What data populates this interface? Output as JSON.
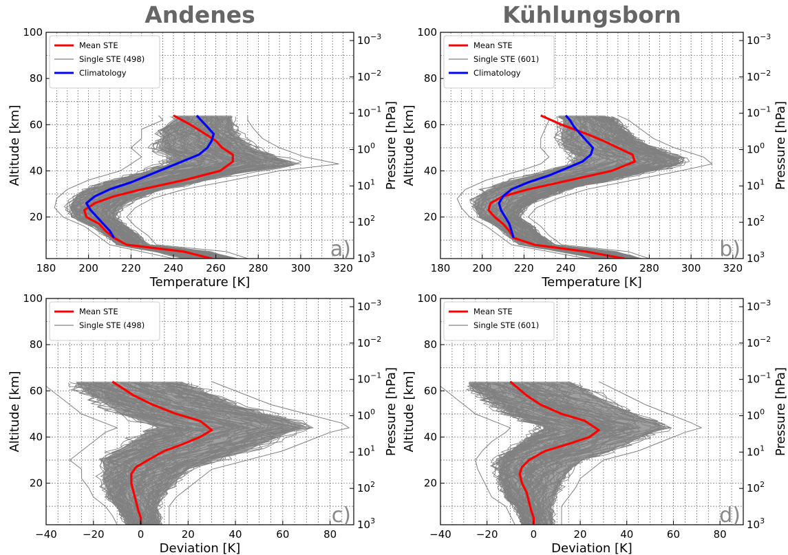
{
  "titles": {
    "left": "Andenes",
    "right": "Kühlungsborn"
  },
  "chart_data": [
    {
      "id": "a",
      "type": "line",
      "panel_label": "a)",
      "xlabel": "Temperature [K]",
      "ylabel": "Altitude [km]",
      "y2label": "Pressure [hPa]",
      "xlim": [
        180,
        325
      ],
      "ylim": [
        2,
        100
      ],
      "xticks": [
        "180",
        "200",
        "220",
        "240",
        "260",
        "280",
        "300",
        "320"
      ],
      "yticks": [
        "20",
        "40",
        "60",
        "80",
        "100"
      ],
      "y2ticks": [
        {
          "base": "10",
          "exp": "−3"
        },
        {
          "base": "10",
          "exp": "−2"
        },
        {
          "base": "10",
          "exp": "−1"
        },
        {
          "base": "10",
          "exp": "0"
        },
        {
          "base": "10",
          "exp": "1"
        },
        {
          "base": "10",
          "exp": "2"
        },
        {
          "base": "10",
          "exp": "3"
        }
      ],
      "grid": true,
      "legend_position": "top-left",
      "legend": [
        "Mean STE",
        "Single STE (498)",
        "Climatology"
      ],
      "series": [
        {
          "name": "Mean STE",
          "color": "#ff0000",
          "altitude": [
            2,
            5,
            8,
            11,
            14,
            17,
            20,
            23,
            26,
            29,
            32,
            36,
            40,
            44,
            47,
            50,
            53,
            56,
            60,
            64
          ],
          "values": [
            258,
            245,
            218,
            212,
            208,
            205,
            199,
            198,
            203,
            212,
            225,
            245,
            262,
            268,
            268,
            263,
            260,
            255,
            248,
            240
          ]
        },
        {
          "name": "Climatology",
          "color": "#0000ff",
          "altitude": [
            11,
            14,
            17,
            20,
            23,
            26,
            29,
            32,
            35,
            38,
            41,
            44,
            47,
            50,
            53,
            56,
            59,
            62,
            64
          ],
          "values": [
            212,
            210,
            207,
            204,
            201,
            199,
            203,
            210,
            220,
            228,
            236,
            244,
            252,
            256,
            258,
            259,
            256,
            253,
            251
          ]
        }
      ],
      "single_ste": {
        "name": "Single STE (498)",
        "color": "#808080",
        "count": 498,
        "envelope": {
          "altitude": [
            2,
            5,
            8,
            12,
            16,
            20,
            24,
            28,
            32,
            36,
            40,
            43,
            46,
            50,
            54,
            58,
            62,
            64
          ],
          "min": [
            240,
            225,
            210,
            204,
            198,
            188,
            184,
            185,
            190,
            200,
            215,
            220,
            225,
            220,
            225,
            225,
            235,
            233
          ],
          "max": [
            275,
            265,
            232,
            228,
            222,
            218,
            222,
            230,
            245,
            268,
            290,
            318,
            302,
            290,
            282,
            278,
            275,
            275
          ]
        }
      }
    },
    {
      "id": "b",
      "type": "line",
      "panel_label": "b)",
      "xlabel": "Temperature [K]",
      "ylabel": "Altitude [km]",
      "y2label": "Pressure [hPa]",
      "xlim": [
        180,
        325
      ],
      "ylim": [
        2,
        100
      ],
      "xticks": [
        "180",
        "200",
        "220",
        "240",
        "260",
        "280",
        "300",
        "320"
      ],
      "yticks": [
        "20",
        "40",
        "60",
        "80",
        "100"
      ],
      "y2ticks": [
        {
          "base": "10",
          "exp": "−3"
        },
        {
          "base": "10",
          "exp": "−2"
        },
        {
          "base": "10",
          "exp": "−1"
        },
        {
          "base": "10",
          "exp": "0"
        },
        {
          "base": "10",
          "exp": "1"
        },
        {
          "base": "10",
          "exp": "2"
        },
        {
          "base": "10",
          "exp": "3"
        }
      ],
      "grid": true,
      "legend_position": "top-left",
      "legend": [
        "Mean STE",
        "Single STE (601)",
        "Climatology"
      ],
      "series": [
        {
          "name": "Mean STE",
          "color": "#ff0000",
          "altitude": [
            2,
            5,
            8,
            11,
            14,
            17,
            20,
            23,
            26,
            29,
            32,
            36,
            40,
            44,
            47,
            50,
            53,
            56,
            60,
            64
          ],
          "values": [
            268,
            250,
            225,
            215,
            213,
            210,
            206,
            203,
            204,
            210,
            222,
            242,
            262,
            273,
            272,
            265,
            258,
            250,
            238,
            228
          ]
        },
        {
          "name": "Climatology",
          "color": "#0000ff",
          "altitude": [
            11,
            14,
            17,
            20,
            23,
            26,
            29,
            32,
            35,
            38,
            41,
            44,
            47,
            50,
            53,
            56,
            59,
            62,
            64
          ],
          "values": [
            215,
            214,
            213,
            211,
            209,
            208,
            210,
            214,
            222,
            232,
            240,
            248,
            252,
            253,
            250,
            247,
            244,
            242,
            240
          ]
        }
      ],
      "single_ste": {
        "name": "Single STE (601)",
        "color": "#808080",
        "count": 601,
        "envelope": {
          "altitude": [
            2,
            5,
            8,
            12,
            16,
            20,
            24,
            28,
            32,
            36,
            40,
            43,
            46,
            50,
            54,
            58,
            62,
            64
          ],
          "min": [
            250,
            232,
            214,
            208,
            202,
            194,
            190,
            188,
            192,
            202,
            218,
            228,
            232,
            228,
            228,
            230,
            232,
            230
          ],
          "max": [
            280,
            270,
            238,
            232,
            228,
            222,
            226,
            236,
            250,
            272,
            295,
            310,
            306,
            292,
            282,
            276,
            270,
            265
          ]
        }
      }
    },
    {
      "id": "c",
      "type": "line",
      "panel_label": "c)",
      "xlabel": "Deviation [K]",
      "ylabel": "Altitude [km]",
      "y2label": "Pressure [hPa]",
      "xlim": [
        -40,
        90
      ],
      "ylim": [
        2,
        100
      ],
      "xticks": [
        "−40",
        "−20",
        "0",
        "20",
        "40",
        "60",
        "80"
      ],
      "yticks": [
        "20",
        "40",
        "60",
        "80",
        "100"
      ],
      "y2ticks": [
        {
          "base": "10",
          "exp": "−3"
        },
        {
          "base": "10",
          "exp": "−2"
        },
        {
          "base": "10",
          "exp": "−1"
        },
        {
          "base": "10",
          "exp": "0"
        },
        {
          "base": "10",
          "exp": "1"
        },
        {
          "base": "10",
          "exp": "2"
        },
        {
          "base": "10",
          "exp": "3"
        }
      ],
      "grid": true,
      "legend_position": "top-left",
      "legend": [
        "Mean STE",
        "Single STE (498)"
      ],
      "series": [
        {
          "name": "Mean STE",
          "color": "#ff0000",
          "altitude": [
            2,
            5,
            8,
            12,
            16,
            20,
            24,
            27,
            30,
            34,
            37,
            40,
            43,
            47,
            50,
            54,
            58,
            64
          ],
          "values": [
            0,
            0,
            -1,
            -2,
            -3,
            -4,
            -4,
            -2,
            3,
            10,
            18,
            25,
            30,
            25,
            15,
            5,
            -3,
            -12
          ]
        }
      ],
      "single_ste": {
        "name": "Single STE (498)",
        "color": "#808080",
        "count": 498,
        "envelope": {
          "altitude": [
            2,
            6,
            10,
            14,
            18,
            22,
            26,
            30,
            34,
            38,
            42,
            44,
            46,
            50,
            54,
            58,
            62,
            64
          ],
          "min": [
            -10,
            -12,
            -15,
            -20,
            -22,
            -25,
            -25,
            -30,
            -25,
            -20,
            -15,
            -10,
            -15,
            -25,
            -30,
            -35,
            -40,
            -40
          ],
          "max": [
            12,
            12,
            12,
            15,
            20,
            25,
            30,
            45,
            60,
            70,
            80,
            88,
            85,
            70,
            55,
            45,
            35,
            30
          ]
        }
      }
    },
    {
      "id": "d",
      "type": "line",
      "panel_label": "d)",
      "xlabel": "Deviation [K]",
      "ylabel": "Altitude [km]",
      "y2label": "Pressure [hPa]",
      "xlim": [
        -40,
        90
      ],
      "ylim": [
        2,
        100
      ],
      "xticks": [
        "−40",
        "−20",
        "0",
        "20",
        "40",
        "60",
        "80"
      ],
      "yticks": [
        "20",
        "40",
        "60",
        "80",
        "100"
      ],
      "y2ticks": [
        {
          "base": "10",
          "exp": "−3"
        },
        {
          "base": "10",
          "exp": "−2"
        },
        {
          "base": "10",
          "exp": "−1"
        },
        {
          "base": "10",
          "exp": "0"
        },
        {
          "base": "10",
          "exp": "1"
        },
        {
          "base": "10",
          "exp": "2"
        },
        {
          "base": "10",
          "exp": "3"
        }
      ],
      "grid": true,
      "legend_position": "top-left",
      "legend": [
        "Mean STE",
        "Single STE (601)"
      ],
      "series": [
        {
          "name": "Mean STE",
          "color": "#ff0000",
          "altitude": [
            2,
            5,
            8,
            12,
            16,
            20,
            24,
            27,
            30,
            34,
            37,
            40,
            43,
            47,
            50,
            54,
            58,
            64
          ],
          "values": [
            0,
            0,
            -1,
            -2,
            -3,
            -5,
            -6,
            -5,
            -2,
            5,
            15,
            24,
            28,
            22,
            12,
            3,
            -3,
            -10
          ]
        }
      ],
      "single_ste": {
        "name": "Single STE (601)",
        "color": "#808080",
        "count": 601,
        "envelope": {
          "altitude": [
            2,
            6,
            10,
            14,
            18,
            22,
            26,
            30,
            34,
            38,
            42,
            44,
            46,
            50,
            54,
            58,
            62,
            64
          ],
          "min": [
            -8,
            -10,
            -12,
            -18,
            -20,
            -22,
            -24,
            -25,
            -22,
            -18,
            -12,
            -10,
            -15,
            -25,
            -30,
            -35,
            -40,
            -40
          ],
          "max": [
            12,
            12,
            12,
            15,
            18,
            20,
            25,
            30,
            45,
            55,
            65,
            72,
            68,
            58,
            48,
            40,
            32,
            28
          ]
        }
      }
    }
  ]
}
